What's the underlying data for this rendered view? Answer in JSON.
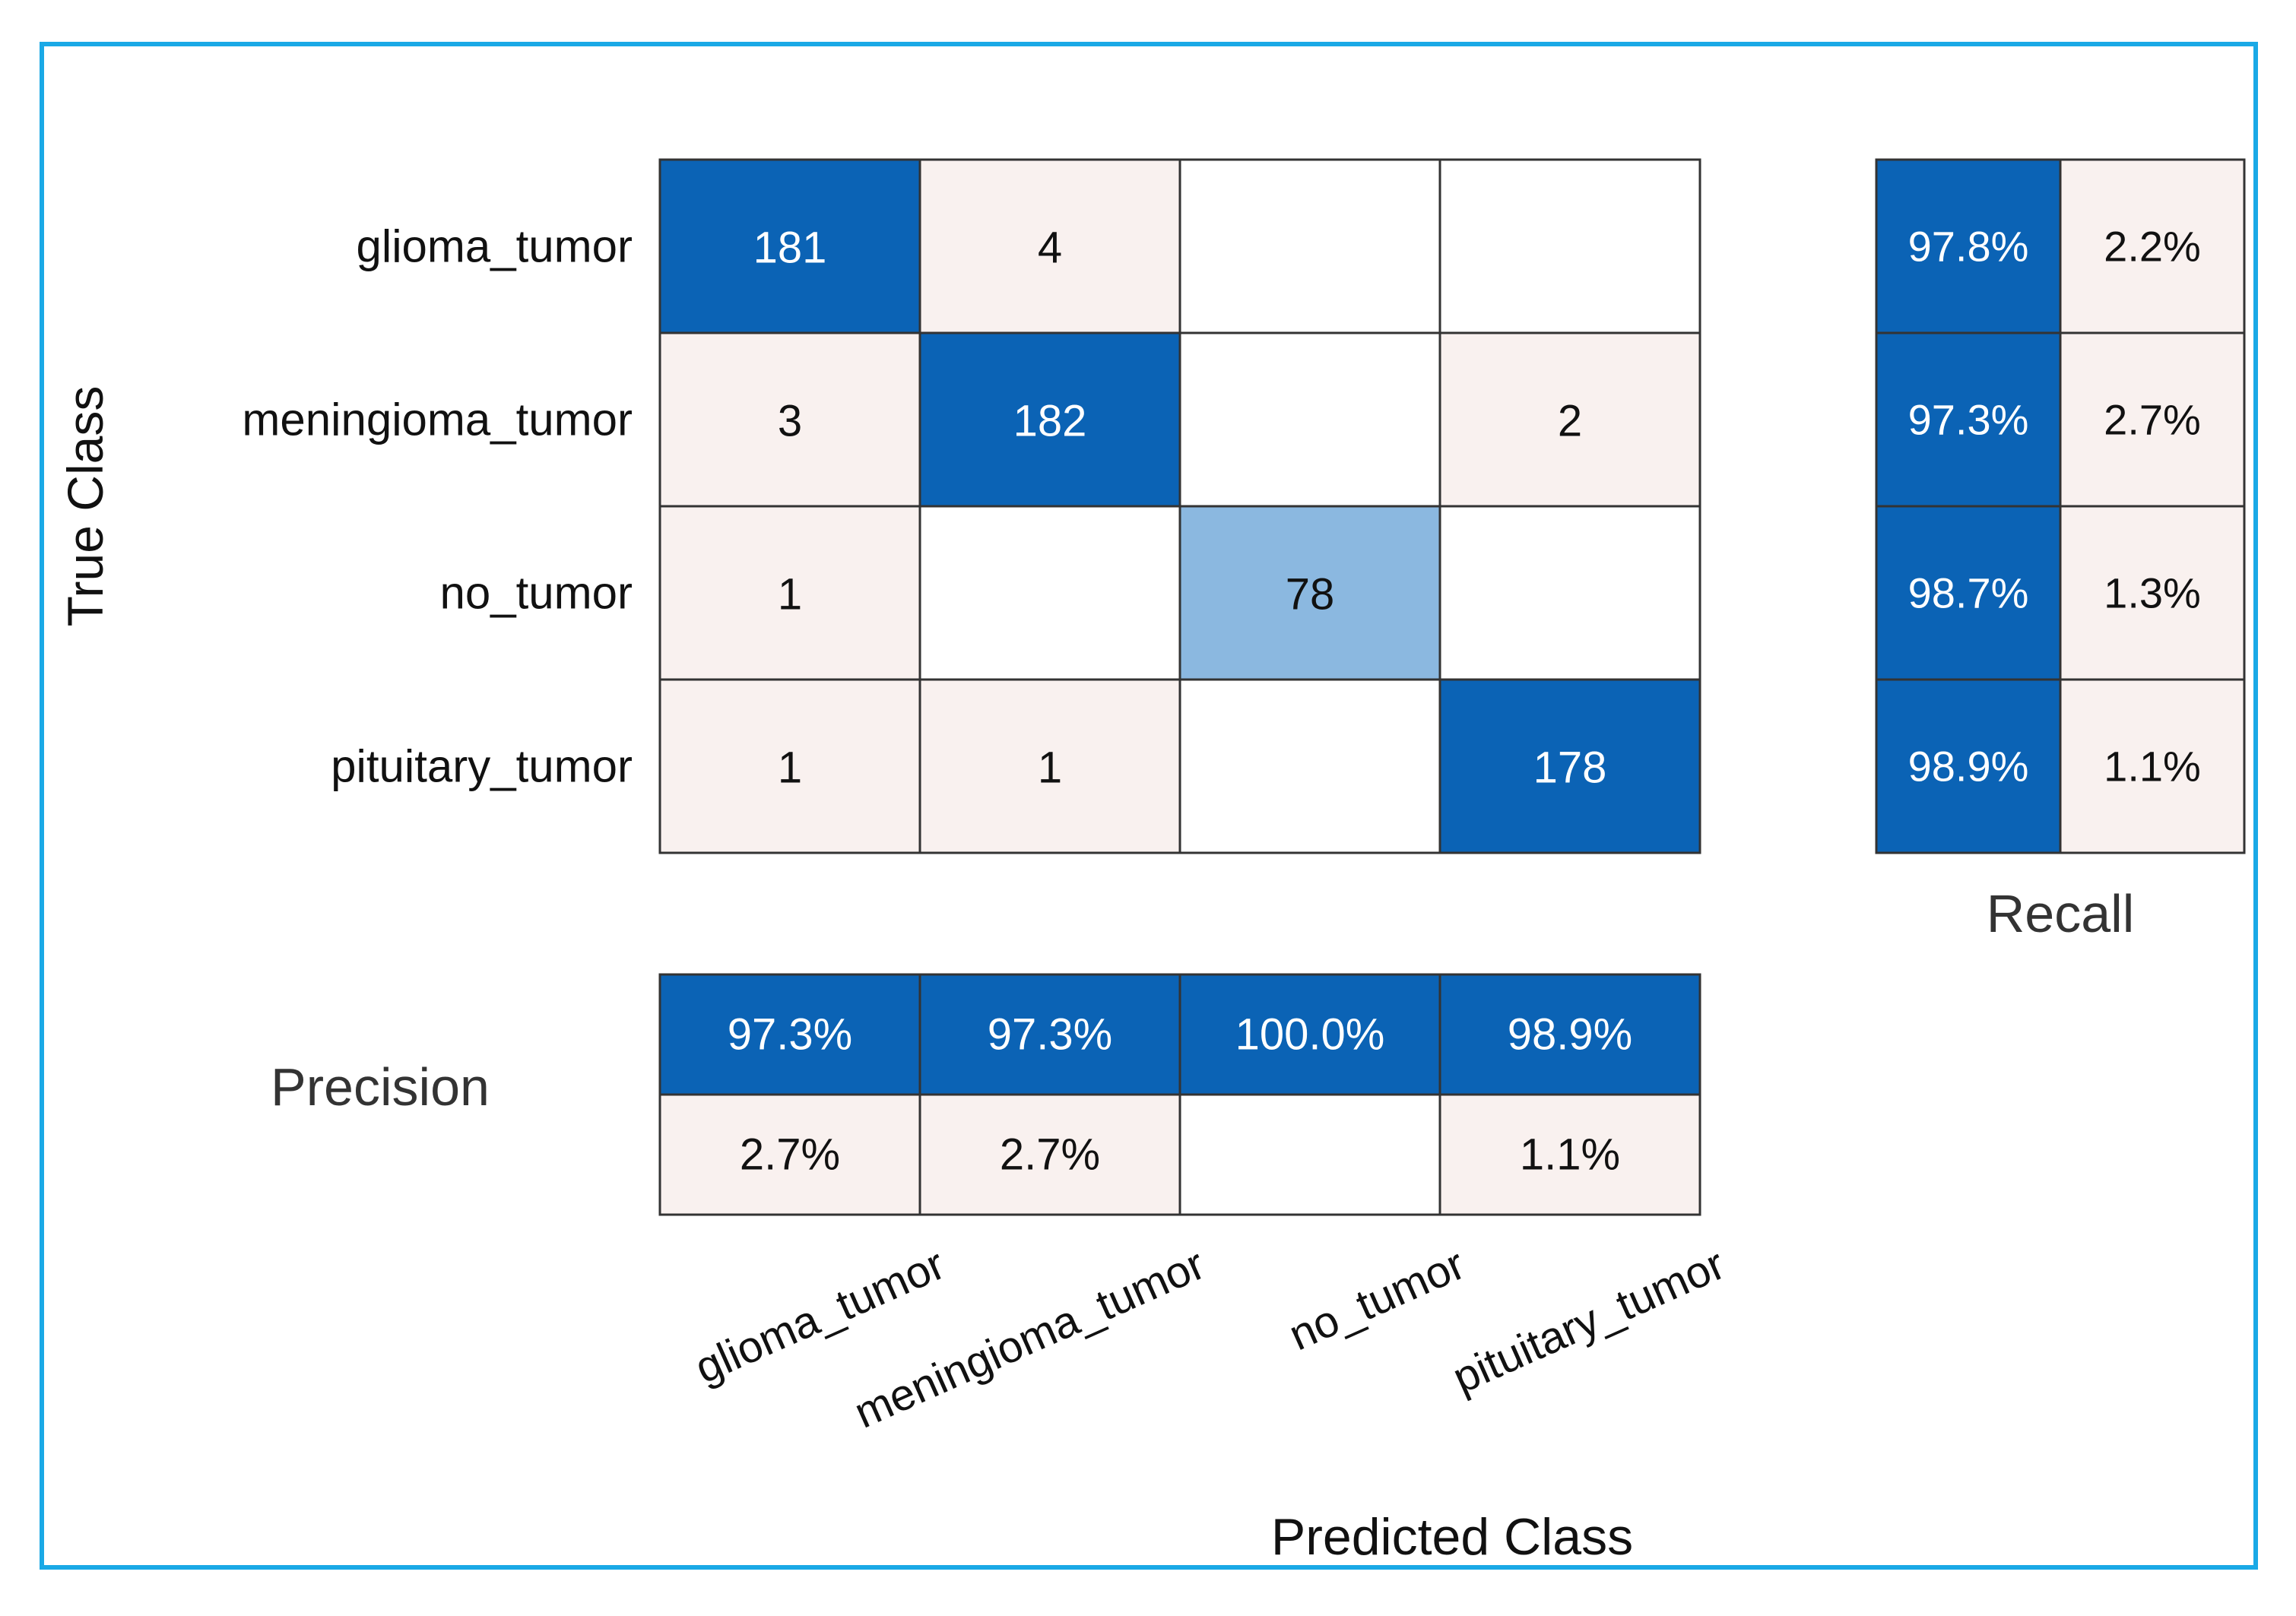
{
  "colors": {
    "frame": "#1aa9e6",
    "strong": "#0b63b5",
    "medium": "#8bb8e0",
    "light": "#f9f1ef",
    "empty": "#ffffff",
    "grid": "#333333",
    "text_dark": "#111111",
    "text_light": "#ffffff"
  },
  "chart_data": {
    "type": "heatmap",
    "title": "",
    "ylabel": "True Class",
    "xlabel": "Predicted Class",
    "classes": [
      "glioma_tumor",
      "meningioma_tumor",
      "no_tumor",
      "pituitary_tumor"
    ],
    "matrix": [
      [
        181,
        4,
        null,
        null
      ],
      [
        3,
        182,
        null,
        2
      ],
      [
        1,
        null,
        78,
        null
      ],
      [
        1,
        1,
        null,
        178
      ]
    ],
    "recall": {
      "label": "Recall",
      "correct": [
        "97.8%",
        "97.3%",
        "98.7%",
        "98.9%"
      ],
      "error": [
        "2.2%",
        "2.7%",
        "1.3%",
        "1.1%"
      ]
    },
    "precision": {
      "label": "Precision",
      "correct": [
        "97.3%",
        "97.3%",
        "100.0%",
        "98.9%"
      ],
      "error": [
        "2.7%",
        "2.7%",
        "",
        "1.1%"
      ]
    }
  }
}
